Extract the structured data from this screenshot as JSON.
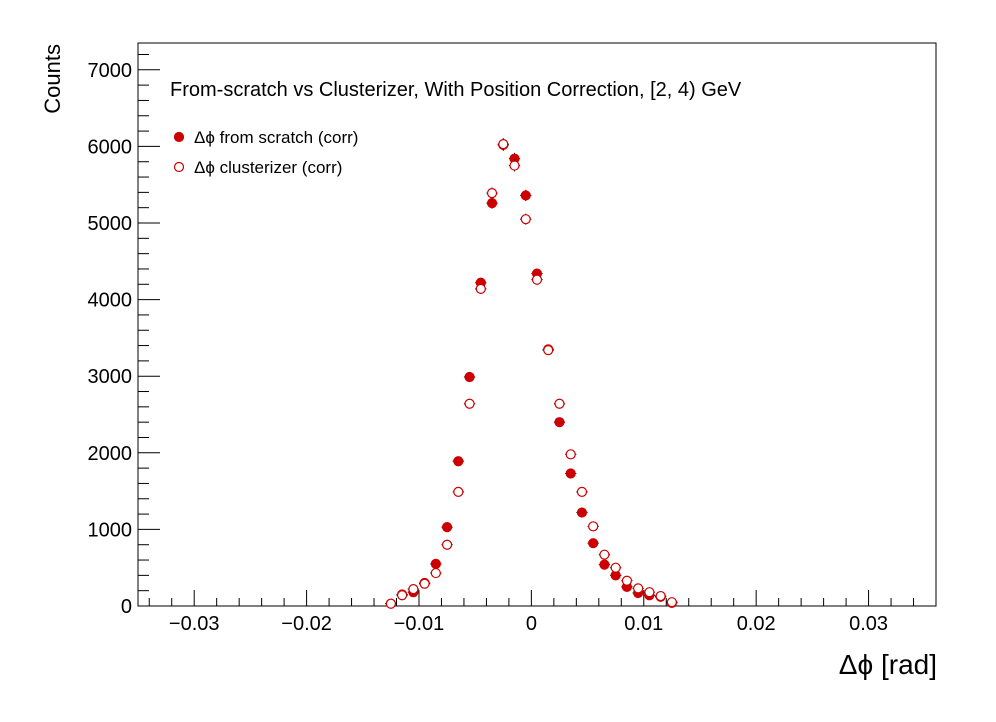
{
  "chart_data": {
    "type": "scatter",
    "title": "From-scratch vs Clusterizer, With Position Correction, [2, 4) GeV",
    "xlabel": "Δϕ  [rad]",
    "ylabel": "Counts",
    "xlim": [
      -0.035,
      0.036
    ],
    "ylim": [
      0,
      7350
    ],
    "x_ticks": [
      -0.03,
      -0.02,
      -0.01,
      0,
      0.01,
      0.02,
      0.03
    ],
    "x_tick_labels": [
      "−0.03",
      "−0.02",
      "−0.01",
      "0",
      "0.01",
      "0.02",
      "0.03"
    ],
    "y_ticks": [
      0,
      1000,
      2000,
      3000,
      4000,
      5000,
      6000,
      7000
    ],
    "y_tick_labels": [
      "0",
      "1000",
      "2000",
      "3000",
      "4000",
      "5000",
      "6000",
      "7000"
    ],
    "grid": false,
    "legend_position": "top-left",
    "series": [
      {
        "name": "Δϕ  from scratch (corr)",
        "marker": "filled-circle",
        "color": "#cc0000",
        "x": [
          -0.0125,
          -0.0115,
          -0.0105,
          -0.0095,
          -0.0085,
          -0.0075,
          -0.0065,
          -0.0055,
          -0.0045,
          -0.0035,
          -0.0025,
          -0.0015,
          -0.0005,
          0.0005,
          0.0015,
          0.0025,
          0.0035,
          0.0045,
          0.0055,
          0.0065,
          0.0075,
          0.0085,
          0.0095,
          0.0105,
          0.0115,
          0.0125
        ],
        "y": [
          30,
          150,
          180,
          300,
          550,
          1030,
          1890,
          2990,
          4220,
          5260,
          6020,
          5840,
          5360,
          4340,
          3350,
          2400,
          1730,
          1220,
          820,
          540,
          400,
          250,
          170,
          140,
          120,
          40
        ]
      },
      {
        "name": "Δϕ  clusterizer (corr)",
        "marker": "open-circle",
        "color": "#cc0000",
        "x": [
          -0.0125,
          -0.0115,
          -0.0105,
          -0.0095,
          -0.0085,
          -0.0075,
          -0.0065,
          -0.0055,
          -0.0045,
          -0.0035,
          -0.0025,
          -0.0015,
          -0.0005,
          0.0005,
          0.0015,
          0.0025,
          0.0035,
          0.0045,
          0.0055,
          0.0065,
          0.0075,
          0.0085,
          0.0095,
          0.0105,
          0.0115,
          0.0125
        ],
        "y": [
          30,
          140,
          220,
          290,
          430,
          800,
          1490,
          2640,
          4140,
          5390,
          6030,
          5750,
          5050,
          4260,
          3340,
          2640,
          1980,
          1490,
          1040,
          670,
          500,
          330,
          230,
          180,
          130,
          50
        ]
      }
    ]
  }
}
